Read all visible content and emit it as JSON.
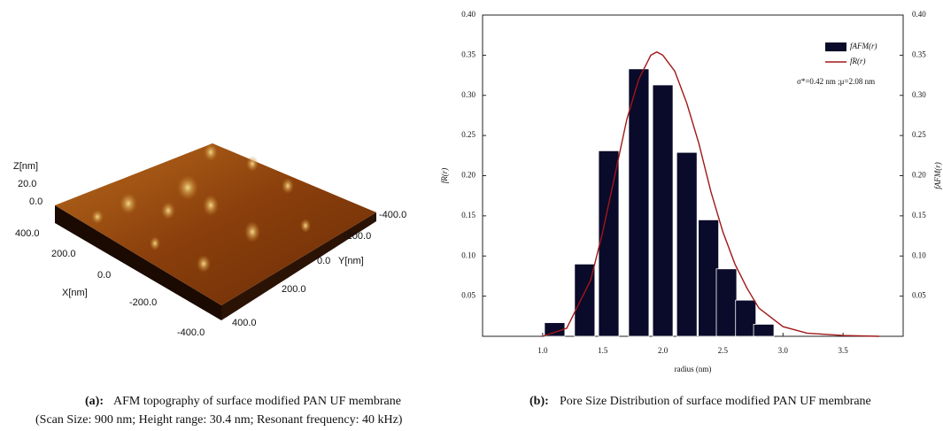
{
  "afm": {
    "z_label": "Z[nm]",
    "z_ticks": [
      "20.0",
      "0.0"
    ],
    "x_label": "X[nm]",
    "x_ticks": [
      "400.0",
      "200.0",
      "0.0",
      "-200.0",
      "-400.0"
    ],
    "y_label": "Y[nm]",
    "y_ticks": [
      "-400.0",
      "-200.0",
      "0.0",
      "200.0",
      "400.0"
    ]
  },
  "captions": {
    "a_tag": "(a):",
    "a_text": "AFM topography of surface modified PAN UF membrane",
    "a_note": "(Scan Size: 900 nm; Height range: 30.4 nm; Resonant frequency: 40 kHz)",
    "b_tag": "(b):",
    "b_text": "Pore Size Distribution of surface modified PAN UF membrane"
  },
  "chart_data": {
    "type": "bar",
    "x_label": "radius (nm)",
    "y_label": "fR(r)",
    "y2_label": "fAFM(r)",
    "annotation": "σ*=0.42 nm ;μ=2.08 nm",
    "legend": "upper right",
    "xlim": [
      0.5,
      4.0
    ],
    "ylim": [
      0,
      0.4
    ],
    "y2lim": [
      0,
      0.4
    ],
    "xticks": [
      {
        "value": 1,
        "label": "1.0"
      },
      {
        "value": 1.5,
        "label": "1.5"
      },
      {
        "value": 2,
        "label": "2.0"
      },
      {
        "value": 2.5,
        "label": "2.5"
      },
      {
        "value": 3,
        "label": "3.0"
      },
      {
        "value": 3.5,
        "label": "3.5"
      }
    ],
    "yticks": [
      {
        "value": 0.05,
        "label": "0.05"
      },
      {
        "value": 0.1,
        "label": "0.10"
      },
      {
        "value": 0.15,
        "label": "0.15"
      },
      {
        "value": 0.2,
        "label": "0.20"
      },
      {
        "value": 0.25,
        "label": "0.25"
      },
      {
        "value": 0.3,
        "label": "0.30"
      },
      {
        "value": 0.35,
        "label": "0.35"
      },
      {
        "value": 0.4,
        "label": "0.40"
      }
    ],
    "y2ticks": [
      {
        "value": 0.05,
        "label": "0.05"
      },
      {
        "value": 0.1,
        "label": "0.10"
      },
      {
        "value": 0.15,
        "label": "0.15"
      },
      {
        "value": 0.2,
        "label": "0.20"
      },
      {
        "value": 0.25,
        "label": "0.25"
      },
      {
        "value": 0.3,
        "label": "0.30"
      },
      {
        "value": 0.35,
        "label": "0.35"
      },
      {
        "value": 0.4,
        "label": "0.40"
      }
    ],
    "series": [
      {
        "name": "fAFM(r)",
        "color": "#0a0a2a",
        "axis": "y2",
        "x": [
          1.1,
          1.35,
          1.55,
          1.8,
          2.0,
          2.2,
          2.38,
          2.53,
          2.69,
          2.84
        ],
        "values": [
          0.017,
          0.09,
          0.231,
          0.333,
          0.313,
          0.229,
          0.145,
          0.084,
          0.045,
          0.015
        ]
      },
      {
        "name": "fR(r)",
        "color": "#a01818",
        "x": [
          1.0,
          1.2,
          1.4,
          1.5,
          1.6,
          1.7,
          1.8,
          1.9,
          1.95,
          2.0,
          2.1,
          2.2,
          2.3,
          2.4,
          2.5,
          2.6,
          2.7,
          2.8,
          3.0,
          3.2,
          3.5,
          3.8
        ],
        "values": [
          0,
          0.01,
          0.07,
          0.13,
          0.2,
          0.27,
          0.32,
          0.35,
          0.354,
          0.35,
          0.33,
          0.29,
          0.24,
          0.18,
          0.13,
          0.09,
          0.06,
          0.035,
          0.012,
          0.004,
          0.001,
          0
        ]
      }
    ]
  }
}
